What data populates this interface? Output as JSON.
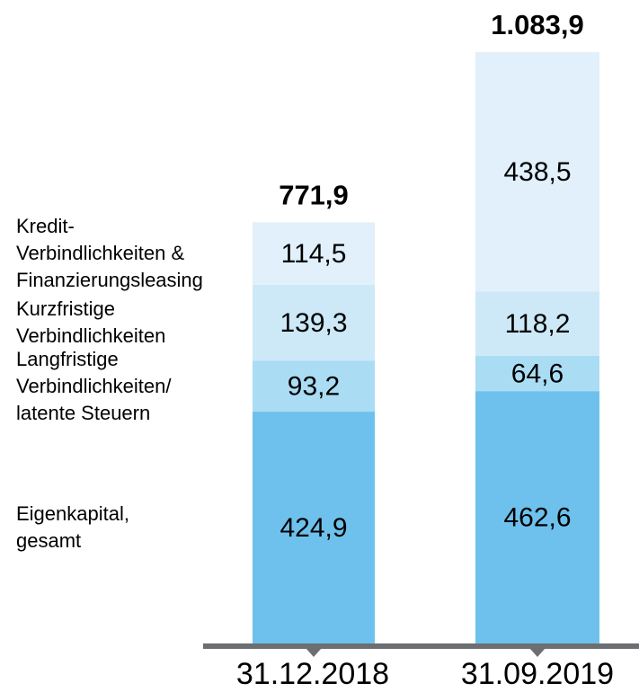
{
  "chart_data": {
    "type": "bar",
    "stacked": true,
    "categories": [
      "31.12.2018",
      "31.09.2019"
    ],
    "series": [
      {
        "name": "Eigenkapital,\ngesamt",
        "color": "#6ec1ec",
        "values": [
          424.9,
          462.6
        ],
        "value_labels": [
          "424,9",
          "462,6"
        ]
      },
      {
        "name": "Langfristige\nVerbindlichkeiten/\nlatente Steuern",
        "color": "#aadcf4",
        "values": [
          93.2,
          64.6
        ],
        "value_labels": [
          "93,2",
          "64,6"
        ]
      },
      {
        "name": "Kurzfristige\nVerbindlichkeiten",
        "color": "#cde9f8",
        "values": [
          139.3,
          118.2
        ],
        "value_labels": [
          "139,3",
          "118,2"
        ]
      },
      {
        "name": "Kredit-\nVerbindlichkeiten &\nFinanzierungsleasing",
        "color": "#e1f0fa",
        "values": [
          114.5,
          438.5
        ],
        "value_labels": [
          "114,5",
          "438,5"
        ]
      }
    ],
    "totals": [
      771.9,
      1083.9
    ],
    "total_labels": [
      "771,9",
      "1.083,9"
    ]
  }
}
